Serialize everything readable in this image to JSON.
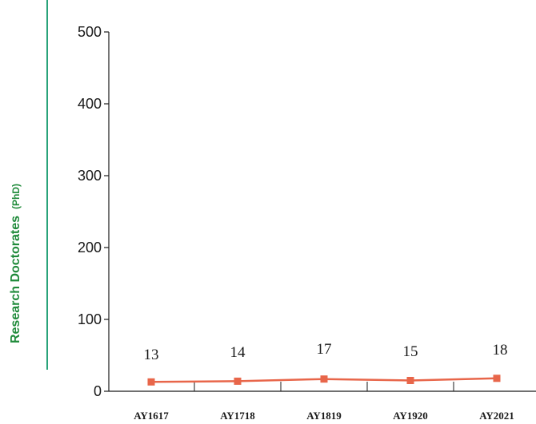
{
  "chart_data": {
    "type": "line",
    "categories": [
      "AY1617",
      "AY1718",
      "AY1819",
      "AY1920",
      "AY2021"
    ],
    "series": [
      {
        "values": [
          13,
          14,
          17,
          15,
          18
        ]
      }
    ],
    "data_labels": [
      "13",
      "14",
      "17",
      "15",
      "18"
    ],
    "ylabel": "Research Doctorates",
    "ylabel_suffix": "(PhD)",
    "yticks": [
      0,
      100,
      200,
      300,
      400,
      500
    ],
    "ylim": [
      0,
      500
    ],
    "grid": false,
    "colors": {
      "line": "#e8664a",
      "accent_bar": "#2aa37a",
      "ylabel": "#1f8a3a"
    }
  }
}
